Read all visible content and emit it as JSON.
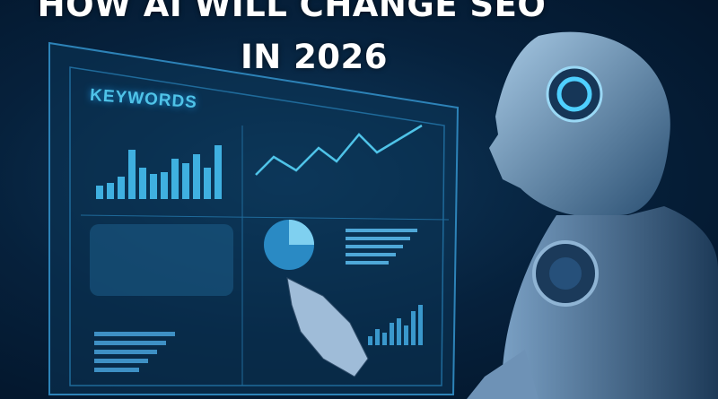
{
  "headline": {
    "line1": "HOW AI WILL CHANGE SEO",
    "line2": "IN 2026"
  },
  "screen": {
    "panel_label": "KEYWORDS"
  },
  "colors": {
    "background": "#06213c",
    "accent": "#4fc3e8",
    "title": "#ffffff",
    "robot": "#8fb4d4"
  }
}
